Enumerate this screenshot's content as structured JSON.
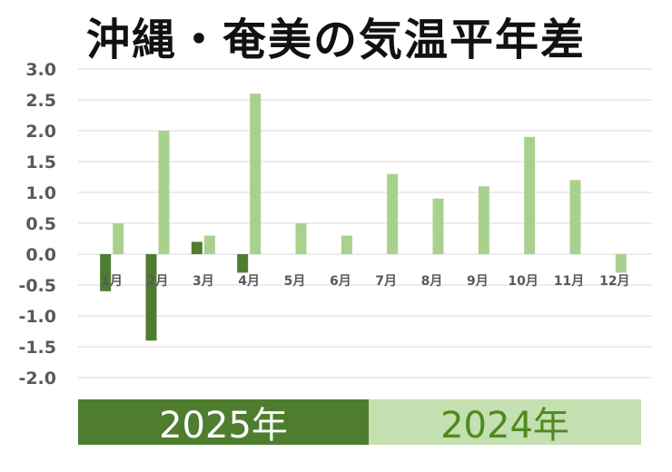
{
  "title": "沖縄・奄美の気温平年差",
  "colors": {
    "series_2025": "#4e7d2f",
    "series_2024": "#a9d18e",
    "grid": "#d9d9d9"
  },
  "chart_data": {
    "type": "bar",
    "title": "沖縄・奄美の気温平年差",
    "xlabel": "",
    "ylabel": "",
    "ylim": [
      -2.0,
      3.0
    ],
    "yticks": [
      "3.0",
      "2.5",
      "2.0",
      "1.5",
      "1.0",
      "0.5",
      "0.0",
      "-0.5",
      "-1.0",
      "-1.5",
      "-2.0"
    ],
    "ytick_values": [
      3.0,
      2.5,
      2.0,
      1.5,
      1.0,
      0.5,
      0.0,
      -0.5,
      -1.0,
      -1.5,
      -2.0
    ],
    "grid": true,
    "legend_placement": "bottom",
    "categories": [
      "1月",
      "2月",
      "3月",
      "4月",
      "5月",
      "6月",
      "7月",
      "8月",
      "9月",
      "10月",
      "11月",
      "12月"
    ],
    "series": [
      {
        "name": "2025年",
        "values": [
          -0.6,
          -1.4,
          0.2,
          -0.3,
          null,
          null,
          null,
          null,
          null,
          null,
          null,
          null
        ]
      },
      {
        "name": "2024年",
        "values": [
          0.5,
          2.0,
          0.3,
          2.6,
          0.5,
          0.3,
          1.3,
          0.9,
          1.1,
          1.9,
          1.2,
          -0.3
        ]
      }
    ]
  }
}
